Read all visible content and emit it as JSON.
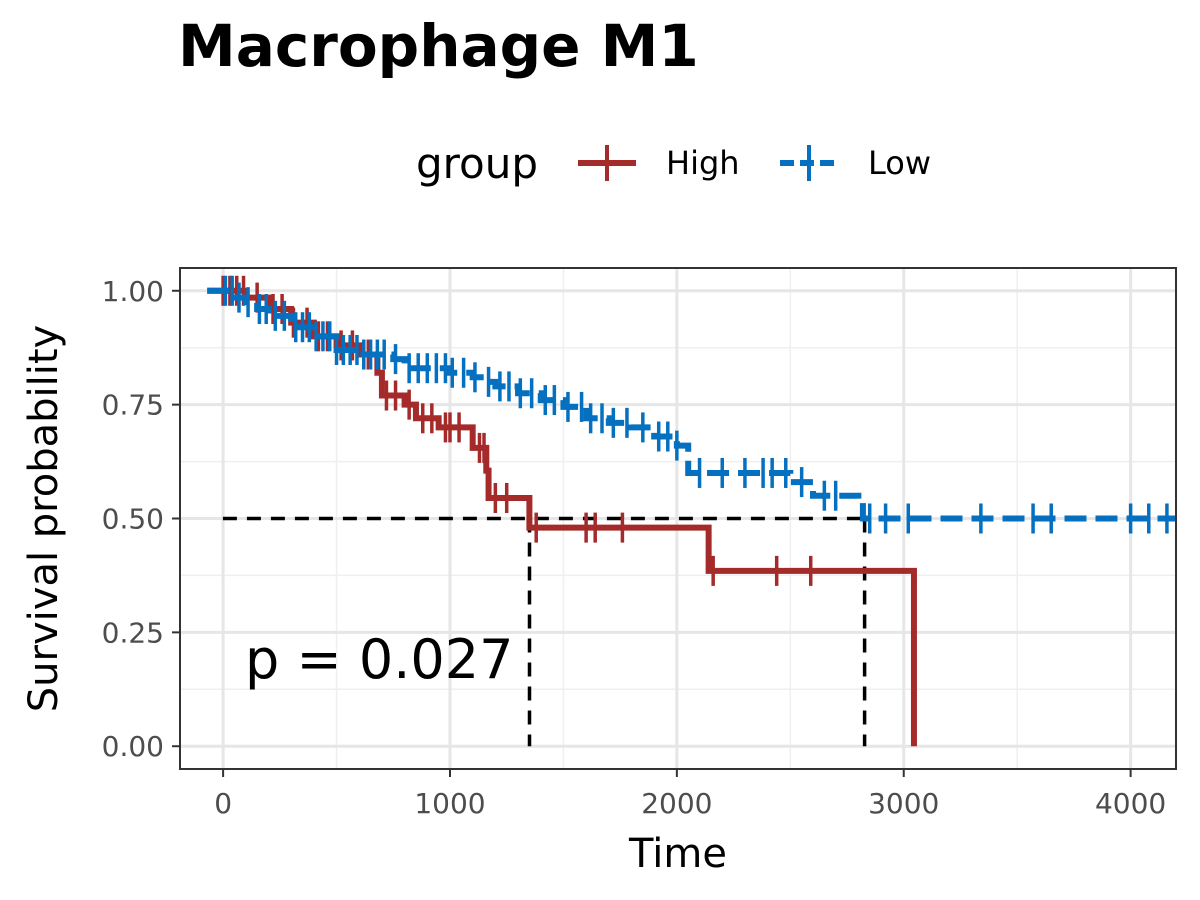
{
  "chart_data": {
    "type": "line",
    "subtype": "kaplan-meier",
    "title": "Macrophage M1",
    "xlabel": "Time",
    "ylabel": "Survival probability",
    "xlim": [
      -190,
      4200
    ],
    "ylim": [
      -0.05,
      1.05
    ],
    "x_ticks": [
      0,
      1000,
      2000,
      3000,
      4000
    ],
    "x_tick_labels": [
      "0",
      "1000",
      "2000",
      "3000",
      "4000"
    ],
    "y_ticks": [
      0,
      0.25,
      0.5,
      0.75,
      1.0
    ],
    "y_tick_labels": [
      "0.00",
      "0.25",
      "0.50",
      "0.75",
      "1.00"
    ],
    "grid": true,
    "legend": {
      "title": "group",
      "position": "top",
      "entries": [
        "High",
        "Low"
      ]
    },
    "annotation": "p = 0.027",
    "median_line_y": 0.5,
    "median_survival": {
      "High": 1350,
      "Low": 2820
    },
    "series": [
      {
        "name": "High",
        "color": "#A52A2A",
        "linestyle": "solid",
        "steps": [
          [
            -70,
            1.0
          ],
          [
            100,
            0.985
          ],
          [
            200,
            0.96
          ],
          [
            300,
            0.93
          ],
          [
            400,
            0.9
          ],
          [
            500,
            0.88
          ],
          [
            600,
            0.86
          ],
          [
            680,
            0.82
          ],
          [
            700,
            0.77
          ],
          [
            800,
            0.75
          ],
          [
            850,
            0.72
          ],
          [
            950,
            0.7
          ],
          [
            1080,
            0.7
          ],
          [
            1100,
            0.655
          ],
          [
            1160,
            0.605
          ],
          [
            1170,
            0.545
          ],
          [
            1350,
            0.48
          ],
          [
            2130,
            0.48
          ],
          [
            2140,
            0.385
          ],
          [
            3040,
            0.385
          ],
          [
            3045,
            0.0
          ]
        ],
        "censor_times": [
          0,
          30,
          60,
          90,
          150,
          220,
          260,
          310,
          370,
          420,
          460,
          520,
          570,
          640,
          720,
          760,
          820,
          880,
          920,
          980,
          1000,
          1040,
          1130,
          1150,
          1200,
          1250,
          1380,
          1600,
          1640,
          1760,
          2160,
          2440,
          2590
        ]
      },
      {
        "name": "Low",
        "color": "#0570C0",
        "linestyle": "dashed",
        "steps": [
          [
            -70,
            1.0
          ],
          [
            50,
            0.985
          ],
          [
            100,
            0.975
          ],
          [
            150,
            0.96
          ],
          [
            200,
            0.945
          ],
          [
            300,
            0.92
          ],
          [
            400,
            0.9
          ],
          [
            500,
            0.87
          ],
          [
            600,
            0.86
          ],
          [
            750,
            0.85
          ],
          [
            800,
            0.83
          ],
          [
            1000,
            0.82
          ],
          [
            1100,
            0.81
          ],
          [
            1150,
            0.8
          ],
          [
            1200,
            0.79
          ],
          [
            1300,
            0.775
          ],
          [
            1400,
            0.76
          ],
          [
            1500,
            0.745
          ],
          [
            1600,
            0.72
          ],
          [
            1700,
            0.71
          ],
          [
            1800,
            0.7
          ],
          [
            1900,
            0.68
          ],
          [
            2000,
            0.66
          ],
          [
            2050,
            0.6
          ],
          [
            2450,
            0.6
          ],
          [
            2500,
            0.58
          ],
          [
            2600,
            0.55
          ],
          [
            2800,
            0.535
          ],
          [
            2820,
            0.5
          ],
          [
            4200,
            0.5
          ]
        ],
        "censor_times": [
          10,
          40,
          70,
          110,
          160,
          190,
          230,
          270,
          320,
          350,
          380,
          410,
          440,
          470,
          500,
          530,
          560,
          590,
          620,
          650,
          680,
          710,
          760,
          820,
          860,
          900,
          940,
          980,
          1010,
          1060,
          1110,
          1170,
          1220,
          1260,
          1310,
          1360,
          1420,
          1460,
          1520,
          1580,
          1620,
          1670,
          1720,
          1780,
          1850,
          1920,
          1960,
          2000,
          2100,
          2200,
          2300,
          2380,
          2420,
          2480,
          2550,
          2650,
          2700,
          2850,
          2920,
          3020,
          3340,
          3570,
          3650,
          4000,
          4080,
          4160
        ]
      }
    ]
  }
}
